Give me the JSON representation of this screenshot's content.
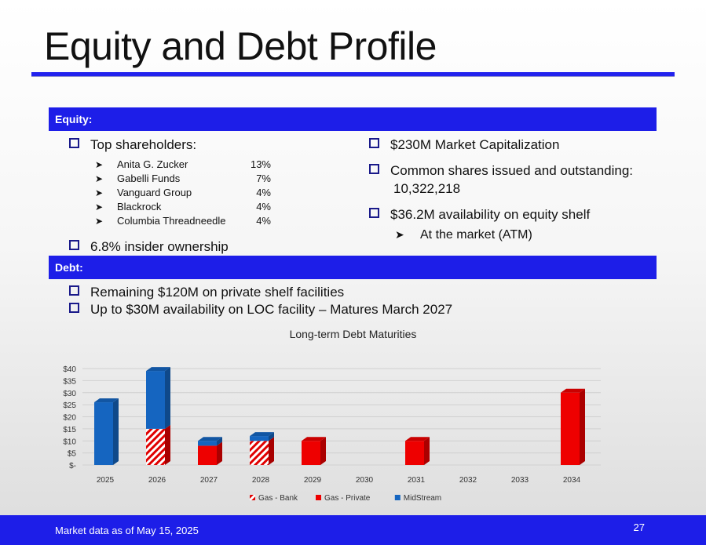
{
  "slide": {
    "title": "Equity and Debt Profile",
    "page_number": "27",
    "footnote": "Market data as of May 15, 2025"
  },
  "equity": {
    "header": "Equity:",
    "top_shareholders_label": "Top shareholders:",
    "shareholders": [
      {
        "name": "Anita G. Zucker",
        "pct": "13%"
      },
      {
        "name": "Gabelli Funds",
        "pct": "7%"
      },
      {
        "name": "Vanguard Group",
        "pct": "4%"
      },
      {
        "name": "Blackrock",
        "pct": "4%"
      },
      {
        "name": "Columbia Threadneedle",
        "pct": "4%"
      }
    ],
    "insider": "6.8% insider ownership",
    "market_cap": "$230M Market Capitalization",
    "shares_line1": "Common shares issued and outstanding:",
    "shares_line2": "10,322,218",
    "shelf": "$36.2M availability on equity shelf",
    "atm": "At the market (ATM)"
  },
  "debt": {
    "header": "Debt:",
    "bullets": [
      "Remaining $120M on private shelf facilities",
      "Up to $30M availability on LOC facility – Matures March 2027"
    ]
  },
  "chart_data": {
    "type": "bar",
    "stacked": true,
    "title": "Long-term Debt Maturities",
    "xlabel": "",
    "ylabel": "",
    "categories": [
      "2025",
      "2026",
      "2027",
      "2028",
      "2029",
      "2030",
      "2031",
      "2032",
      "2033",
      "2034"
    ],
    "y_ticks": [
      "$-",
      "$5",
      "$10",
      "$15",
      "$20",
      "$25",
      "$30",
      "$35",
      "$40"
    ],
    "ylim": [
      0,
      40
    ],
    "grid": true,
    "legend_position": "bottom",
    "series": [
      {
        "name": "Gas - Bank",
        "color": "#e00000",
        "pattern": "hatched",
        "values": [
          0,
          15,
          0,
          10,
          0,
          0,
          0,
          0,
          0,
          0
        ]
      },
      {
        "name": "Gas - Private",
        "color": "#ee0000",
        "values": [
          0,
          0,
          8,
          0,
          10,
          0,
          10,
          0,
          0,
          30
        ]
      },
      {
        "name": "MidStream",
        "color": "#1565c0",
        "values": [
          26,
          24,
          2,
          2,
          0,
          0,
          0,
          0,
          0,
          0
        ]
      }
    ]
  }
}
